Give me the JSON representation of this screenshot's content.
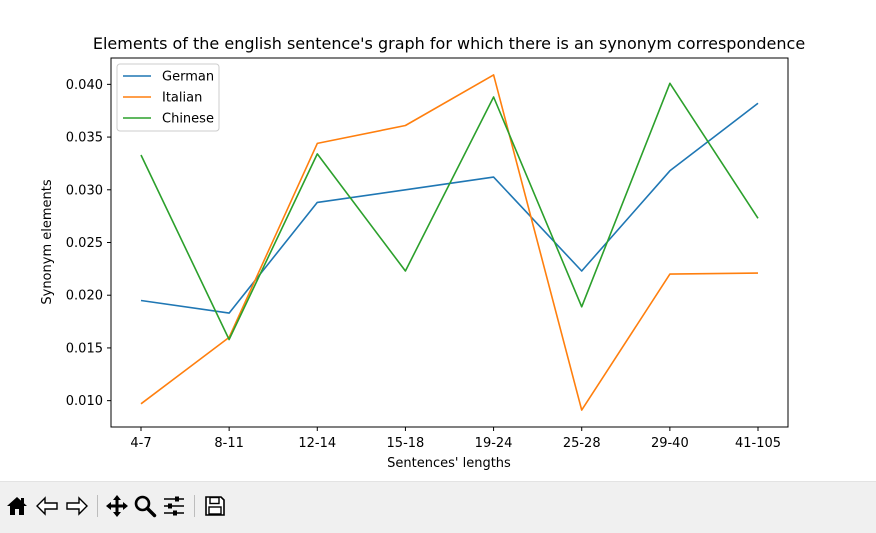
{
  "chart_data": {
    "type": "line",
    "title": "Elements of the english sentence's graph for which there is an synonym correspondence",
    "xlabel": "Sentences' lengths",
    "ylabel": "Synonym elements",
    "categories": [
      "4-7",
      "8-11",
      "12-14",
      "15-18",
      "19-24",
      "25-28",
      "29-40",
      "41-105"
    ],
    "yticks": [
      "0.010",
      "0.015",
      "0.020",
      "0.025",
      "0.030",
      "0.035",
      "0.040"
    ],
    "ylim": [
      0.0075,
      0.0425
    ],
    "grid": false,
    "legend_position": "top-left",
    "series": [
      {
        "name": "German",
        "color": "#1f77b4",
        "values": [
          0.0195,
          0.0183,
          0.0288,
          0.03,
          0.0312,
          0.0223,
          0.0318,
          0.0382
        ]
      },
      {
        "name": "Italian",
        "color": "#ff7f0e",
        "values": [
          0.0097,
          0.016,
          0.0344,
          0.0361,
          0.0409,
          0.0091,
          0.022,
          0.0221
        ]
      },
      {
        "name": "Chinese",
        "color": "#2ca02c",
        "values": [
          0.0333,
          0.0158,
          0.0334,
          0.0223,
          0.0388,
          0.0189,
          0.0401,
          0.0273
        ]
      }
    ]
  },
  "toolbar": {
    "buttons": [
      {
        "name": "home-icon"
      },
      {
        "name": "back-arrow-icon"
      },
      {
        "name": "forward-arrow-icon"
      },
      {
        "name": "pan-icon"
      },
      {
        "name": "zoom-icon"
      },
      {
        "name": "subplots-icon"
      },
      {
        "name": "save-icon"
      }
    ]
  }
}
